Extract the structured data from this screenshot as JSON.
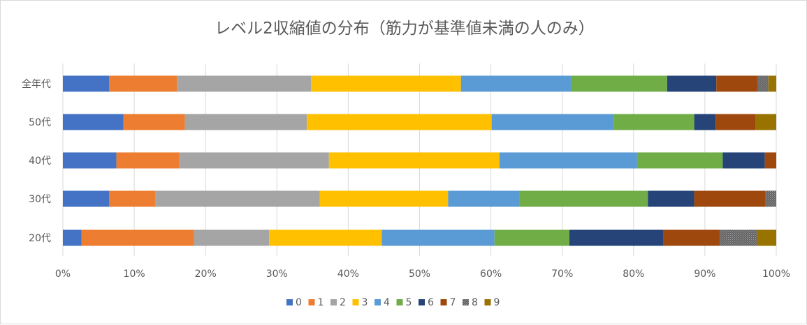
{
  "chart_data": {
    "type": "bar",
    "orientation": "horizontal",
    "stacked": "percent",
    "title": "レベル2収縮値の分布（筋力が基準値未満の人のみ）",
    "categories": [
      "全年代",
      "50代",
      "40代",
      "30代",
      "20代"
    ],
    "x_ticks": [
      "0%",
      "10%",
      "20%",
      "30%",
      "40%",
      "50%",
      "60%",
      "70%",
      "80%",
      "90%",
      "100%"
    ],
    "xlim": [
      0,
      100
    ],
    "grid": "vertical",
    "legend_position": "bottom",
    "series": [
      {
        "name": "0",
        "color": "#4472c4",
        "pattern": "solid",
        "values": [
          6.5,
          8.5,
          7.5,
          6.5,
          2.6
        ]
      },
      {
        "name": "1",
        "color": "#ed7d31",
        "pattern": "solid",
        "values": [
          9.5,
          8.6,
          8.8,
          6.5,
          15.8
        ]
      },
      {
        "name": "2",
        "color": "#a5a5a5",
        "pattern": "solid",
        "values": [
          18.8,
          17.1,
          21.0,
          23.0,
          10.5
        ]
      },
      {
        "name": "3",
        "color": "#ffc000",
        "pattern": "solid",
        "values": [
          21.0,
          25.9,
          23.9,
          18.0,
          15.8
        ]
      },
      {
        "name": "4",
        "color": "#5b9bd5",
        "pattern": "solid",
        "values": [
          15.4,
          17.1,
          19.3,
          10.0,
          15.8
        ]
      },
      {
        "name": "5",
        "color": "#70ad47",
        "pattern": "solid",
        "values": [
          13.5,
          11.3,
          12.0,
          18.0,
          10.5
        ]
      },
      {
        "name": "6",
        "color": "#264478",
        "pattern": "solid",
        "values": [
          6.9,
          3.0,
          5.9,
          6.5,
          13.2
        ]
      },
      {
        "name": "7",
        "color": "#9e480e",
        "pattern": "solid",
        "values": [
          5.8,
          5.6,
          1.6,
          10.0,
          7.9
        ]
      },
      {
        "name": "8",
        "color": "#636363",
        "pattern": "dots",
        "values": [
          1.5,
          0,
          0,
          1.5,
          5.2
        ]
      },
      {
        "name": "9",
        "color": "#997300",
        "pattern": "solid",
        "values": [
          1.1,
          2.9,
          0,
          0,
          2.7
        ]
      }
    ]
  }
}
